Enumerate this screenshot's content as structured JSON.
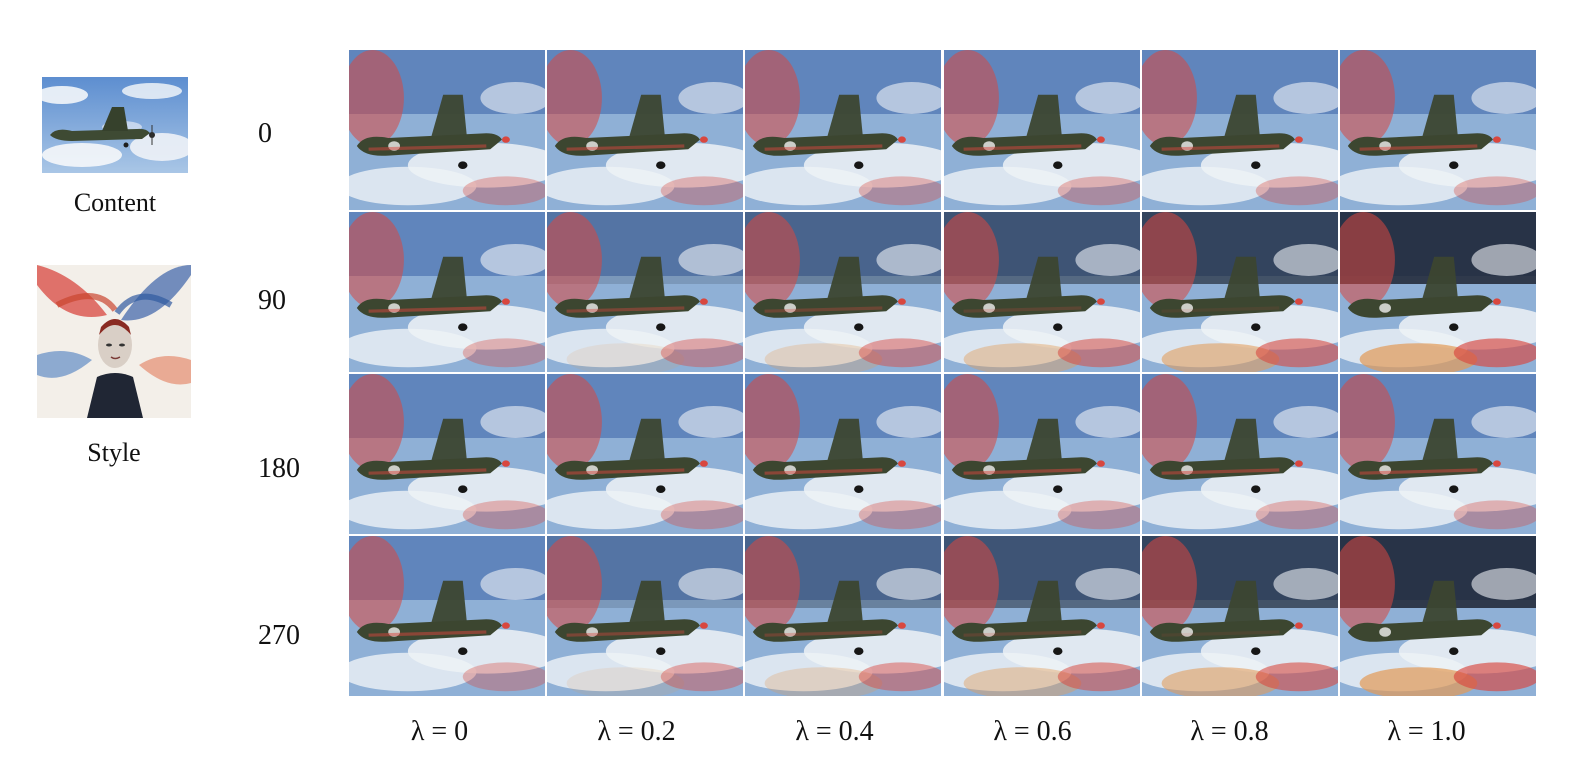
{
  "labels": {
    "content": "Content",
    "style": "Style"
  },
  "rows": [
    "0",
    "90",
    "180",
    "270"
  ],
  "columns": [
    "λ = 0",
    "λ = 0.2",
    "λ = 0.4",
    "λ = 0.6",
    "λ = 0.8",
    "λ = 1.0"
  ],
  "colors": {
    "sky": "#8fb0d6",
    "cloud": "#eef2f6",
    "plane": "#3c4630",
    "red_accent": "#d8473f",
    "blue_accent": "#3a63a8",
    "dark_band": "#1e2532",
    "warm_band": "#e39a55"
  }
}
